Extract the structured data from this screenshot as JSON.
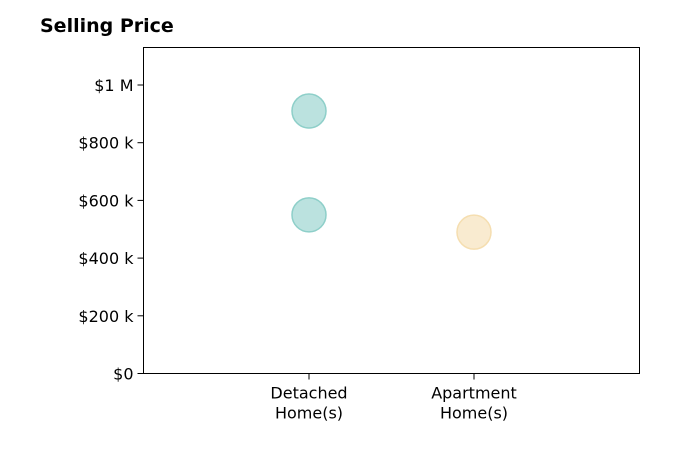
{
  "chart_data": {
    "type": "scatter",
    "title": "Selling Price",
    "xlabel": "",
    "ylabel": "",
    "categories": [
      {
        "line1": "Detached",
        "line2": "Home(s)"
      },
      {
        "line1": "Apartment",
        "line2": "Home(s)"
      }
    ],
    "ylim": [
      0,
      1130000
    ],
    "yticks": [
      {
        "value": 0,
        "label": "$0"
      },
      {
        "value": 200000,
        "label": "$200 k"
      },
      {
        "value": 400000,
        "label": "$400 k"
      },
      {
        "value": 600000,
        "label": "$600 k"
      },
      {
        "value": 800000,
        "label": "$800 k"
      },
      {
        "value": 1000000,
        "label": "$1 M"
      }
    ],
    "points": [
      {
        "category": 0,
        "value": 910000,
        "color": "#8ecfc9"
      },
      {
        "category": 0,
        "value": 550000,
        "color": "#8ecfc9"
      },
      {
        "category": 1,
        "value": 490000,
        "color": "#f5deb0"
      }
    ],
    "grid": false,
    "legend": "none"
  }
}
